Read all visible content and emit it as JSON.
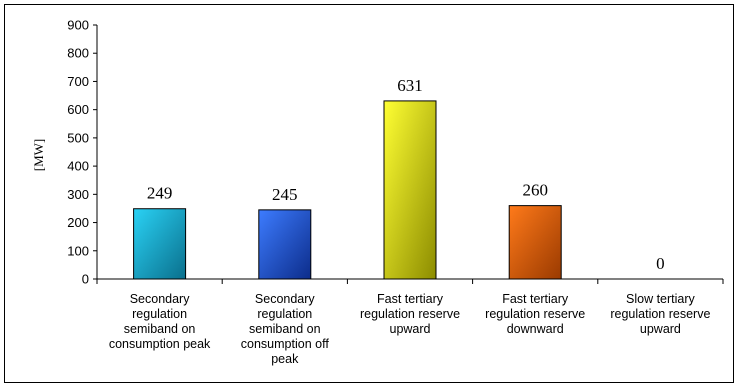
{
  "chart_data": {
    "type": "bar",
    "ylabel": "[MW]",
    "ylim": [
      0,
      900
    ],
    "ytick_step": 100,
    "ytick_labels": [
      "0",
      "100",
      "200",
      "300",
      "400",
      "500",
      "600",
      "700",
      "800",
      "900"
    ],
    "grid": false,
    "legend": "none",
    "categories": [
      [
        "Secondary",
        "regulation",
        "semiband on",
        "consumption peak"
      ],
      [
        "Secondary",
        "regulation",
        "semiband on",
        "consumption off",
        "peak"
      ],
      [
        "Fast tertiary",
        "regulation reserve",
        "upward"
      ],
      [
        "Fast tertiary",
        "regulation reserve",
        "downward"
      ],
      [
        "Slow tertiary",
        "regulation reserve",
        "upward"
      ]
    ],
    "values": [
      249,
      245,
      631,
      260,
      0
    ],
    "data_labels": [
      "249",
      "245",
      "631",
      "260",
      "0"
    ],
    "colors": [
      [
        "#2ad2f5",
        "#0a6f8c"
      ],
      [
        "#3d7cff",
        "#0c2c8a"
      ],
      [
        "#ffff33",
        "#8c8c00"
      ],
      [
        "#ff7a1a",
        "#9a3a00"
      ],
      [
        "#aaaaaa",
        "#555555"
      ]
    ]
  }
}
